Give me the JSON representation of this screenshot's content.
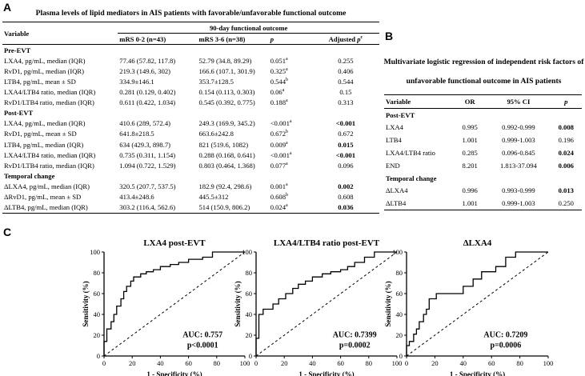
{
  "panelA": {
    "letter": "A",
    "caption": "Plasma levels of lipid mediators in AIS patients with favorable/unfavorable functional outcome",
    "variable_header": "Variable",
    "outcome_header": "90-day functional outcome",
    "columns": [
      "mRS 0-2 (n=43)",
      "mRS 3-6 (n=38)",
      "p",
      "Adjusted p"
    ],
    "adjusted_sup": "c",
    "sections": [
      {
        "title": "Pre-EVT",
        "rows": [
          {
            "var": "LXA4, pg/mL, median (IQR)",
            "a": "77.46 (57.82, 117.8)",
            "b": "52.79 (34.8, 89.29)",
            "p": "0.051",
            "sup": "a",
            "adj": "0.255",
            "bold": false
          },
          {
            "var": "RvD1, pg/mL, median (IQR)",
            "a": "219.3 (149.6, 302)",
            "b": "166.6 (107.1, 301.9)",
            "p": "0.325",
            "sup": "a",
            "adj": "0.406",
            "bold": false
          },
          {
            "var": "LTB4, pg/mL, mean ± SD",
            "a": "334.9±146.1",
            "b": "353.7±128.5",
            "p": "0.544",
            "sup": "b",
            "adj": "0.544",
            "bold": false
          },
          {
            "var": "LXA4/LTB4 ratio, median (IQR)",
            "a": "0.281 (0.129, 0.402)",
            "b": "0.154 (0.113, 0.303)",
            "p": "0.06",
            "sup": "a",
            "adj": "0.15",
            "bold": false
          },
          {
            "var": "RvD1/LTB4 ratio, median (IQR)",
            "a": "0.611 (0.422, 1.034)",
            "b": "0.545 (0.392, 0.775)",
            "p": "0.188",
            "sup": "a",
            "adj": "0.313",
            "bold": false
          }
        ]
      },
      {
        "title": "Post-EVT",
        "rows": [
          {
            "var": "LXA4, pg/mL, median (IQR)",
            "a": "410.6 (289, 572.4)",
            "b": "249.3 (169.9, 345.2)",
            "p": "<0.001",
            "sup": "a",
            "adj": "<0.001",
            "bold": true
          },
          {
            "var": "RvD1, pg/mL, mean ± SD",
            "a": "641.8±218.5",
            "b": "663.6±242.8",
            "p": "0.672",
            "sup": "b",
            "adj": "0.672",
            "bold": false
          },
          {
            "var": "LTB4, pg/mL, median (IQR)",
            "a": "634 (429.3, 898.7)",
            "b": "821 (519.6, 1082)",
            "p": "0.009",
            "sup": "a",
            "adj": "0.015",
            "bold": true
          },
          {
            "var": "LXA4/LTB4 ratio, median (IQR)",
            "a": "0.735 (0.311, 1.154)",
            "b": "0.288 (0.168, 0.641)",
            "p": "<0.001",
            "sup": "a",
            "adj": "<0.001",
            "bold": true
          },
          {
            "var": "RvD1/LTB4 ratio, median (IQR)",
            "a": "1.094 (0.722, 1.529)",
            "b": "0.803 (0.464, 1.368)",
            "p": "0.077",
            "sup": "a",
            "adj": "0.096",
            "bold": false
          }
        ]
      },
      {
        "title": "Temporal change",
        "rows": [
          {
            "var": "ΔLXA4, pg/mL, median (IQR)",
            "a": "320.5 (207.7, 537.5)",
            "b": "182.9 (92.4, 298.6)",
            "p": "0.001",
            "sup": "a",
            "adj": "0.002",
            "bold": true
          },
          {
            "var": "ΔRvD1, pg/mL, mean ± SD",
            "a": "413.4±248.6",
            "b": "445.5±312",
            "p": "0.608",
            "sup": "b",
            "adj": "0.608",
            "bold": false
          },
          {
            "var": "ΔLTB4, pg/mL, median (IQR)",
            "a": "303.2 (116.4, 562.6)",
            "b": "514 (150.9, 806.2)",
            "p": "0.024",
            "sup": "a",
            "adj": "0.036",
            "bold": true
          }
        ]
      }
    ]
  },
  "panelB": {
    "letter": "B",
    "caption_line1": "Multivariate logistic regression of independent risk factors of",
    "caption_line2": "unfavorable functional outcome in AIS patients",
    "columns": [
      "Variable",
      "OR",
      "95% CI",
      "p"
    ],
    "sections": [
      {
        "title": "Post-EVT",
        "rows": [
          {
            "var": "LXA4",
            "or": "0.995",
            "ci": "0.992-0.999",
            "p": "0.008",
            "bold": true
          },
          {
            "var": "LTB4",
            "or": "1.001",
            "ci": "0.999-1.003",
            "p": "0.196",
            "bold": false
          },
          {
            "var": "LXA4/LTB4 ratio",
            "or": "0.285",
            "ci": "0.096-0.845",
            "p": "0.024",
            "bold": true
          },
          {
            "var": "END",
            "or": "8.201",
            "ci": "1.813-37.094",
            "p": "0.006",
            "bold": true
          }
        ]
      },
      {
        "title": "Temporal change",
        "rows": [
          {
            "var": "ΔLXA4",
            "or": "0.996",
            "ci": "0.993-0.999",
            "p": "0.013",
            "bold": true
          },
          {
            "var": "ΔLTB4",
            "or": "1.001",
            "ci": "0.999-1.003",
            "p": "0.250",
            "bold": false
          }
        ]
      }
    ]
  },
  "panelC": {
    "letter": "C"
  },
  "chart_data": [
    {
      "type": "line",
      "title": "LXA4 post-EVT",
      "xlabel": "1 - Specificity (%)",
      "ylabel": "Sensitivity (%)",
      "xlim": [
        0,
        100
      ],
      "ylim": [
        0,
        100
      ],
      "ticks": [
        0,
        20,
        40,
        60,
        80,
        100
      ],
      "auc_label": "AUC: 0.757",
      "p_label": "p<0.0001",
      "series": [
        {
          "name": "ROC",
          "x": [
            0,
            0,
            2,
            2,
            5,
            5,
            7,
            7,
            9,
            9,
            12,
            12,
            14,
            14,
            16,
            16,
            19,
            19,
            21,
            21,
            26,
            26,
            30,
            30,
            35,
            35,
            40,
            40,
            47,
            47,
            53,
            53,
            60,
            60,
            70,
            70,
            77,
            77,
            100
          ],
          "y": [
            0,
            14,
            14,
            26,
            26,
            33,
            33,
            40,
            40,
            48,
            48,
            55,
            55,
            62,
            62,
            67,
            67,
            72,
            72,
            76,
            76,
            79,
            79,
            81,
            81,
            83,
            83,
            86,
            86,
            88,
            88,
            90,
            90,
            93,
            93,
            95,
            95,
            100,
            100
          ]
        }
      ]
    },
    {
      "type": "line",
      "title": "LXA4/LTB4 ratio post-EVT",
      "xlabel": "1 - Specificity (%)",
      "ylabel": "Sensitivity (%)",
      "xlim": [
        0,
        100
      ],
      "ylim": [
        0,
        100
      ],
      "ticks": [
        0,
        20,
        40,
        60,
        80,
        100
      ],
      "auc_label": "AUC: 0.7399",
      "p_label": "p=0.0002",
      "series": [
        {
          "name": "ROC",
          "x": [
            0,
            0,
            2,
            2,
            5,
            5,
            12,
            12,
            16,
            16,
            21,
            21,
            26,
            26,
            30,
            30,
            35,
            35,
            40,
            40,
            47,
            47,
            53,
            53,
            60,
            60,
            65,
            65,
            70,
            70,
            77,
            77,
            84,
            84,
            100
          ],
          "y": [
            0,
            17,
            17,
            40,
            40,
            45,
            45,
            50,
            50,
            55,
            55,
            60,
            60,
            65,
            65,
            69,
            69,
            72,
            72,
            76,
            76,
            79,
            79,
            81,
            81,
            83,
            83,
            86,
            86,
            90,
            90,
            95,
            95,
            100,
            100
          ]
        }
      ]
    },
    {
      "type": "line",
      "title": "ΔLXA4",
      "xlabel": "1 - Specificity (%)",
      "ylabel": "Sensitivity (%)",
      "xlim": [
        0,
        100
      ],
      "ylim": [
        0,
        100
      ],
      "ticks": [
        0,
        20,
        40,
        60,
        80,
        100
      ],
      "auc_label": "AUC: 0.7209",
      "p_label": "p=0.0006",
      "series": [
        {
          "name": "ROC",
          "x": [
            0,
            0,
            2,
            2,
            5,
            5,
            7,
            7,
            9,
            9,
            12,
            12,
            14,
            14,
            16,
            16,
            21,
            21,
            40,
            40,
            47,
            47,
            53,
            53,
            63,
            63,
            70,
            70,
            77,
            77,
            100
          ],
          "y": [
            0,
            10,
            10,
            14,
            14,
            21,
            21,
            26,
            26,
            33,
            33,
            40,
            40,
            45,
            45,
            55,
            55,
            60,
            60,
            67,
            67,
            74,
            74,
            81,
            81,
            86,
            86,
            95,
            95,
            100,
            100
          ]
        }
      ]
    }
  ]
}
